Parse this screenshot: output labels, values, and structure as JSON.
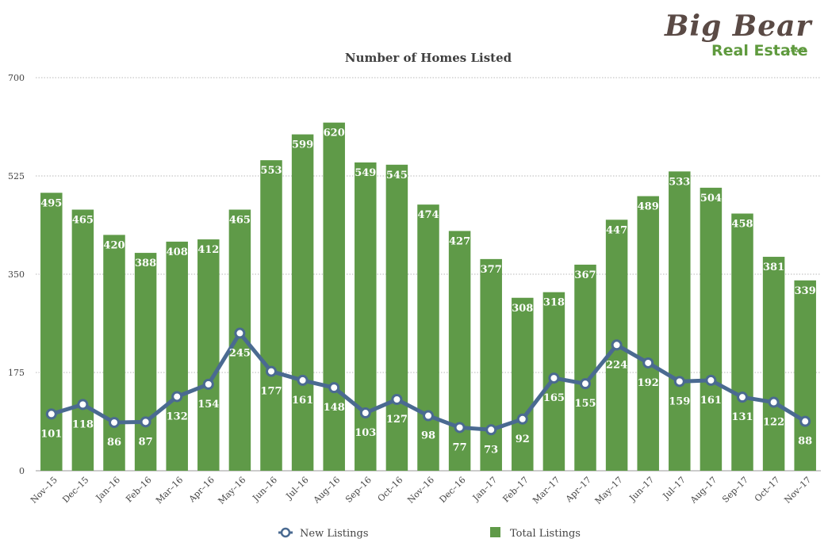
{
  "logo": {
    "top": "Big Bear",
    "bottom": "Real Estate",
    "suffix": ".com"
  },
  "chart_data": {
    "type": "bar",
    "title": "Number of Homes Listed",
    "xlabel": "",
    "ylabel": "",
    "ylim": [
      0,
      700
    ],
    "yticks": [
      "0",
      "175",
      "350",
      "525",
      "700"
    ],
    "grid": true,
    "legend_position": "bottom",
    "categories": [
      "Nov–15",
      "Dec–15",
      "Jan–16",
      "Feb–16",
      "Mar–16",
      "Apr–16",
      "May–16",
      "Jun–16",
      "Jul–16",
      "Aug–16",
      "Sep–16",
      "Oct–16",
      "Nov–16",
      "Dec–16",
      "Jan–17",
      "Feb–17",
      "Mar–17",
      "Apr–17",
      "May–17",
      "Jun–17",
      "Jul–17",
      "Aug–17",
      "Sep–17",
      "Oct–17",
      "Nov–17"
    ],
    "series": [
      {
        "name": "Total Listings",
        "type": "bar",
        "color": "#5f9a48",
        "values": [
          495,
          465,
          420,
          388,
          408,
          412,
          465,
          553,
          599,
          620,
          549,
          545,
          474,
          427,
          377,
          308,
          318,
          367,
          447,
          489,
          533,
          504,
          458,
          381,
          339
        ]
      },
      {
        "name": "New Listings",
        "type": "line",
        "color": "#4a6a91",
        "values": [
          101,
          118,
          86,
          87,
          132,
          154,
          245,
          177,
          161,
          148,
          103,
          127,
          98,
          77,
          73,
          92,
          165,
          155,
          224,
          192,
          159,
          161,
          131,
          122,
          88
        ]
      }
    ]
  }
}
